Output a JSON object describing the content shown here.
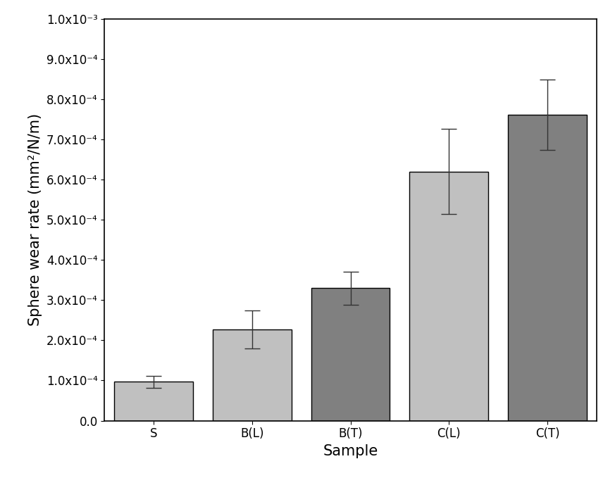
{
  "chart_data": {
    "type": "bar",
    "x_label": "Sample",
    "y_label": "Sphere wear rate (mm²/N/m)",
    "categories": [
      "S",
      "B(L)",
      "B(T)",
      "C(L)",
      "C(T)"
    ],
    "values": [
      9.7e-05,
      0.000227,
      0.00033,
      0.00062,
      0.000762
    ],
    "errors": [
      1.5e-05,
      4.8e-05,
      4.1e-05,
      0.000106,
      8.8e-05
    ],
    "colors": [
      "#c0c0c0",
      "#c0c0c0",
      "#808080",
      "#c0c0c0",
      "#808080"
    ],
    "ylim": [
      0,
      0.001
    ],
    "yticks": [
      {
        "value": 0,
        "label": "0.0"
      },
      {
        "value": 0.0001,
        "label": "1.0x10⁻⁴"
      },
      {
        "value": 0.0002,
        "label": "2.0x10⁻⁴"
      },
      {
        "value": 0.0003,
        "label": "3.0x10⁻⁴"
      },
      {
        "value": 0.0004,
        "label": "4.0x10⁻⁴"
      },
      {
        "value": 0.0005,
        "label": "5.0x10⁻⁴"
      },
      {
        "value": 0.0006,
        "label": "6.0x10⁻⁴"
      },
      {
        "value": 0.0007,
        "label": "7.0x10⁻⁴"
      },
      {
        "value": 0.0008,
        "label": "8.0x10⁻⁴"
      },
      {
        "value": 0.0009,
        "label": "9.0x10⁻⁴"
      },
      {
        "value": 0.001,
        "label": "1.0x10⁻³"
      }
    ],
    "grid": false
  }
}
